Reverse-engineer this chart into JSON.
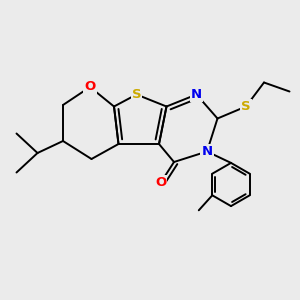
{
  "bg_color": "#ebebeb",
  "atom_colors": {
    "S": "#ccaa00",
    "O": "#ff0000",
    "N": "#0000ee",
    "C": "#000000"
  },
  "figsize": [
    3.0,
    3.0
  ],
  "dpi": 100,
  "lw": 1.4,
  "fontsize": 9.5
}
